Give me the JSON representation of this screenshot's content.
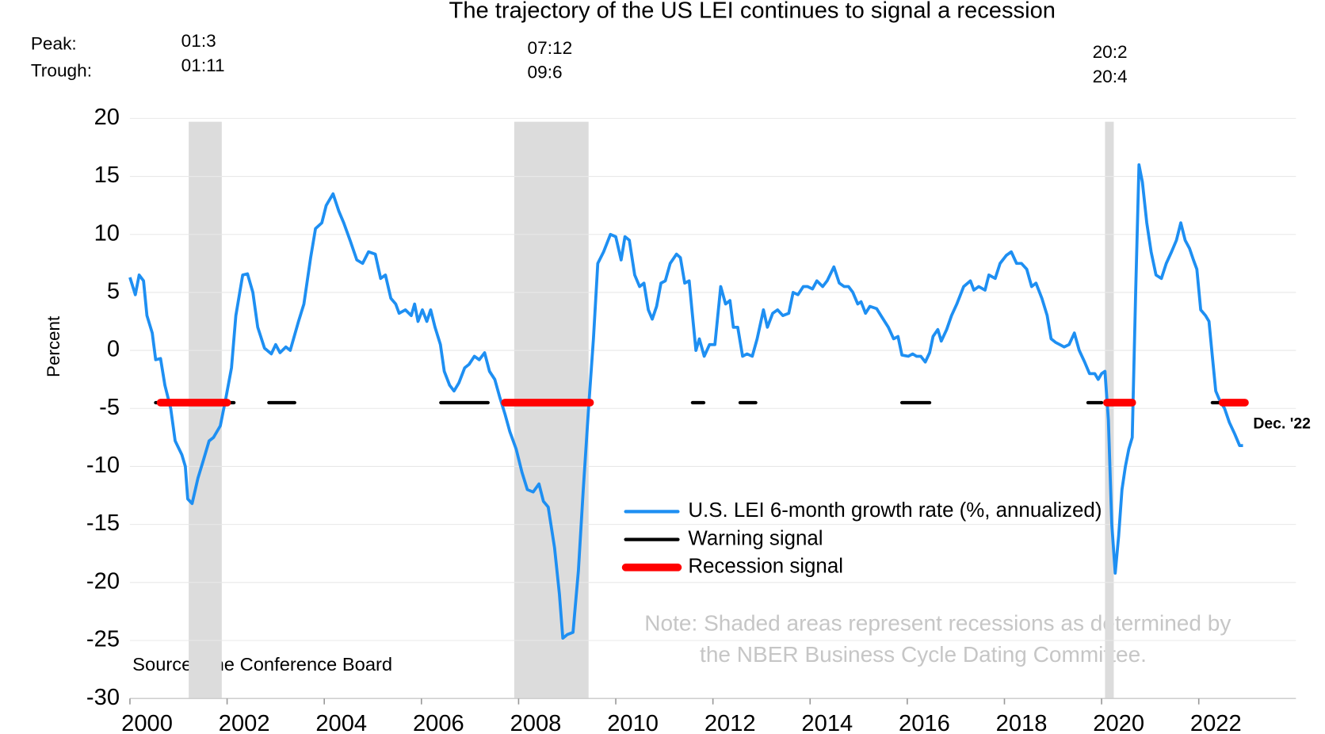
{
  "chart_data": {
    "type": "line",
    "title": "The trajectory of the US LEI continues to signal a recession",
    "y_label": "Percent",
    "xlim": [
      2000,
      2024
    ],
    "xticks": [
      2000,
      2002,
      2004,
      2006,
      2008,
      2010,
      2012,
      2014,
      2016,
      2018,
      2020,
      2022
    ],
    "ylim": [
      -30,
      20
    ],
    "yticks": [
      -30,
      -25,
      -20,
      -15,
      -10,
      -5,
      0,
      5,
      10,
      15,
      20
    ],
    "grid": true,
    "series": [
      {
        "name": "U.S. LEI 6-month growth rate (%, annualized)",
        "color": "#1e8ff2",
        "x": [
          2000.0,
          2000.11,
          2000.19,
          2000.28,
          2000.35,
          2000.46,
          2000.53,
          2000.63,
          2000.72,
          2000.84,
          2000.93,
          2001.07,
          2001.14,
          2001.19,
          2001.28,
          2001.4,
          2001.51,
          2001.63,
          2001.72,
          2001.86,
          2001.98,
          2002.09,
          2002.18,
          2002.32,
          2002.42,
          2002.53,
          2002.63,
          2002.77,
          2002.91,
          2003.0,
          2003.09,
          2003.21,
          2003.3,
          2003.47,
          2003.58,
          2003.72,
          2003.82,
          2003.95,
          2004.04,
          2004.18,
          2004.3,
          2004.4,
          2004.53,
          2004.67,
          2004.79,
          2004.91,
          2005.05,
          2005.16,
          2005.26,
          2005.37,
          2005.47,
          2005.54,
          2005.67,
          2005.79,
          2005.86,
          2005.93,
          2006.02,
          2006.11,
          2006.19,
          2006.28,
          2006.39,
          2006.47,
          2006.58,
          2006.67,
          2006.77,
          2006.89,
          2006.98,
          2007.09,
          2007.19,
          2007.3,
          2007.4,
          2007.51,
          2007.61,
          2007.72,
          2007.82,
          2007.95,
          2008.07,
          2008.18,
          2008.3,
          2008.42,
          2008.51,
          2008.61,
          2008.74,
          2008.84,
          2008.91,
          2009.0,
          2009.12,
          2009.23,
          2009.33,
          2009.44,
          2009.54,
          2009.63,
          2009.75,
          2009.89,
          2010.0,
          2010.11,
          2010.19,
          2010.28,
          2010.39,
          2010.49,
          2010.58,
          2010.67,
          2010.75,
          2010.84,
          2010.93,
          2011.02,
          2011.12,
          2011.25,
          2011.33,
          2011.42,
          2011.51,
          2011.58,
          2011.65,
          2011.72,
          2011.82,
          2011.93,
          2012.04,
          2012.16,
          2012.26,
          2012.35,
          2012.42,
          2012.51,
          2012.61,
          2012.7,
          2012.81,
          2012.91,
          2013.04,
          2013.12,
          2013.23,
          2013.33,
          2013.44,
          2013.56,
          2013.65,
          2013.75,
          2013.86,
          2013.95,
          2014.05,
          2014.14,
          2014.26,
          2014.35,
          2014.49,
          2014.6,
          2014.7,
          2014.79,
          2014.88,
          2014.98,
          2015.05,
          2015.14,
          2015.23,
          2015.37,
          2015.49,
          2015.61,
          2015.72,
          2015.81,
          2015.89,
          2016.02,
          2016.11,
          2016.19,
          2016.28,
          2016.37,
          2016.46,
          2016.53,
          2016.63,
          2016.7,
          2016.81,
          2016.91,
          2017.02,
          2017.16,
          2017.3,
          2017.37,
          2017.47,
          2017.6,
          2017.68,
          2017.81,
          2017.91,
          2018.04,
          2018.14,
          2018.25,
          2018.35,
          2018.46,
          2018.56,
          2018.65,
          2018.77,
          2018.88,
          2018.96,
          2019.05,
          2019.14,
          2019.23,
          2019.33,
          2019.44,
          2019.54,
          2019.65,
          2019.75,
          2019.86,
          2019.93,
          2020.0,
          2020.07,
          2020.14,
          2020.21,
          2020.28,
          2020.35,
          2020.42,
          2020.49,
          2020.56,
          2020.63,
          2020.7,
          2020.77,
          2020.84,
          2020.93,
          2021.02,
          2021.12,
          2021.23,
          2021.33,
          2021.44,
          2021.54,
          2021.63,
          2021.72,
          2021.81,
          2021.89,
          2021.96,
          2022.04,
          2022.14,
          2022.21,
          2022.28,
          2022.35,
          2022.42,
          2022.53,
          2022.63,
          2022.74,
          2022.84,
          2022.91
        ],
        "values": [
          6.3,
          4.8,
          6.5,
          6,
          3,
          1.5,
          -0.8,
          -0.7,
          -3,
          -5,
          -7.8,
          -9,
          -10,
          -12.8,
          -13.2,
          -11,
          -9.5,
          -7.8,
          -7.5,
          -6.5,
          -4,
          -1.5,
          3,
          6.5,
          6.6,
          5,
          2,
          0.2,
          -0.3,
          0.5,
          -0.2,
          0.3,
          0,
          2.5,
          4,
          8,
          10.5,
          11,
          12.5,
          13.5,
          12,
          11,
          9.5,
          7.8,
          7.5,
          8.5,
          8.3,
          6.2,
          6.5,
          4.5,
          4,
          3.2,
          3.5,
          3,
          4,
          2.5,
          3.5,
          2.5,
          3.5,
          2,
          0.5,
          -1.8,
          -3,
          -3.5,
          -2.8,
          -1.5,
          -1.2,
          -0.5,
          -0.8,
          -0.2,
          -1.8,
          -2.5,
          -4,
          -5.5,
          -7,
          -8.5,
          -10.5,
          -12,
          -12.2,
          -11.5,
          -13,
          -13.5,
          -17,
          -21,
          -24.8,
          -24.5,
          -24.3,
          -19,
          -12,
          -5,
          1,
          7.5,
          8.5,
          10,
          9.8,
          7.8,
          9.8,
          9.5,
          6.5,
          5.5,
          5.8,
          3.5,
          2.7,
          3.8,
          5.8,
          6,
          7.5,
          8.3,
          8,
          5.8,
          6,
          3,
          0,
          1,
          -0.5,
          0.5,
          0.5,
          5.5,
          4,
          4.3,
          2,
          2,
          -0.5,
          -0.3,
          -0.5,
          1,
          3.5,
          2,
          3.2,
          3.5,
          3,
          3.2,
          5,
          4.8,
          5.5,
          5.5,
          5.3,
          6,
          5.5,
          6,
          7.2,
          5.8,
          5.5,
          5.5,
          5,
          4,
          4.2,
          3.2,
          3.8,
          3.6,
          2.8,
          2,
          1,
          1.2,
          -0.4,
          -0.5,
          -0.3,
          -0.5,
          -0.5,
          -1,
          -0.2,
          1.2,
          1.8,
          0.8,
          1.8,
          3,
          4,
          5.5,
          6,
          5.2,
          5.5,
          5.2,
          6.5,
          6.2,
          7.5,
          8.2,
          8.5,
          7.5,
          7.5,
          7,
          5.5,
          5.8,
          4.5,
          3,
          1,
          0.7,
          0.5,
          0.3,
          0.5,
          1.5,
          0,
          -1,
          -2,
          -2,
          -2.5,
          -2,
          -1.8,
          -6,
          -15,
          -19.2,
          -16,
          -12,
          -10,
          -8.5,
          -7.5,
          5,
          16,
          14.5,
          11,
          8.5,
          6.5,
          6.2,
          7.5,
          8.5,
          9.5,
          11,
          9.5,
          8.8,
          7.8,
          7,
          3.5,
          3,
          2.5,
          -0.5,
          -3.5,
          -4.2,
          -5,
          -6.2,
          -7.2,
          -8.2,
          -8.2
        ]
      }
    ],
    "signals": [
      {
        "name": "Warning signal",
        "color": "#000000",
        "level": -4.5,
        "periods": [
          [
            2000.53,
            2002.14
          ],
          [
            2002.86,
            2003.39
          ],
          [
            2006.4,
            2007.37
          ],
          [
            2007.68,
            2007.75
          ],
          [
            2011.58,
            2011.81
          ],
          [
            2012.56,
            2012.88
          ],
          [
            2015.89,
            2016.46
          ],
          [
            2019.72,
            2020.0
          ],
          [
            2022.28,
            2022.53
          ]
        ]
      },
      {
        "name": "Recession signal",
        "color": "#ff0000",
        "level": -4.5,
        "periods": [
          [
            2000.63,
            2002.0
          ],
          [
            2007.72,
            2009.47
          ],
          [
            2020.11,
            2020.63
          ],
          [
            2022.49,
            2022.95
          ]
        ]
      }
    ],
    "recession_labels": {
      "peak": "Peak:",
      "trough": "Trough:"
    },
    "recessions": [
      {
        "peak": "01:3",
        "trough": "01:11",
        "start": 2001.21,
        "end": 2001.89
      },
      {
        "peak": "07:12",
        "trough": "09:6",
        "start": 2007.91,
        "end": 2009.44
      },
      {
        "peak": "20:2",
        "trough": "20:4",
        "start": 2020.07,
        "end": 2020.25
      }
    ],
    "end_label": "Dec. '22",
    "note": [
      "Note: Shaded areas represent recessions as determined by",
      "the NBER Business Cycle Dating Committee."
    ],
    "source": "Source: The Conference Board"
  }
}
